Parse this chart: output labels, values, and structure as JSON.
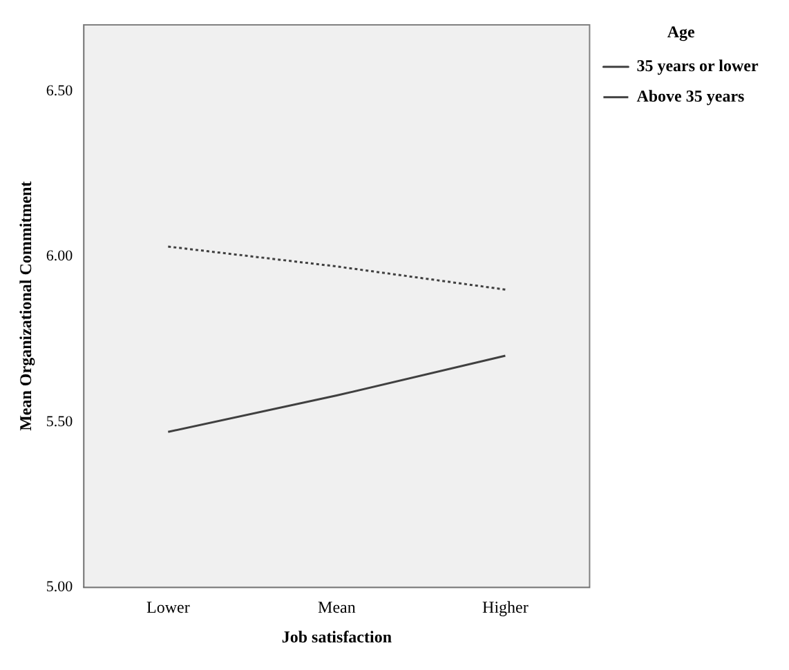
{
  "chart_data": {
    "type": "line",
    "xlabel": "Job satisfaction",
    "ylabel": "Mean Organizational Commitment",
    "legend_title": "Age",
    "legend": "right",
    "grid": false,
    "marker": "none",
    "categories": [
      "Lower",
      "Mean",
      "Higher"
    ],
    "series": [
      {
        "name": "35 years or lower",
        "color": "#404040",
        "line_style": "solid",
        "values": [
          5.47,
          5.58,
          5.7
        ]
      },
      {
        "name": "Above 35 years",
        "color": "#404040",
        "line_style": "dotted",
        "values": [
          6.03,
          5.97,
          5.9
        ]
      }
    ],
    "ylim": [
      5.0,
      6.7
    ],
    "yticks": [
      {
        "value": 5.0,
        "label": "5.00"
      },
      {
        "value": 5.5,
        "label": "5.50"
      },
      {
        "value": 6.0,
        "label": "6.00"
      },
      {
        "value": 6.5,
        "label": "6.50"
      }
    ]
  }
}
